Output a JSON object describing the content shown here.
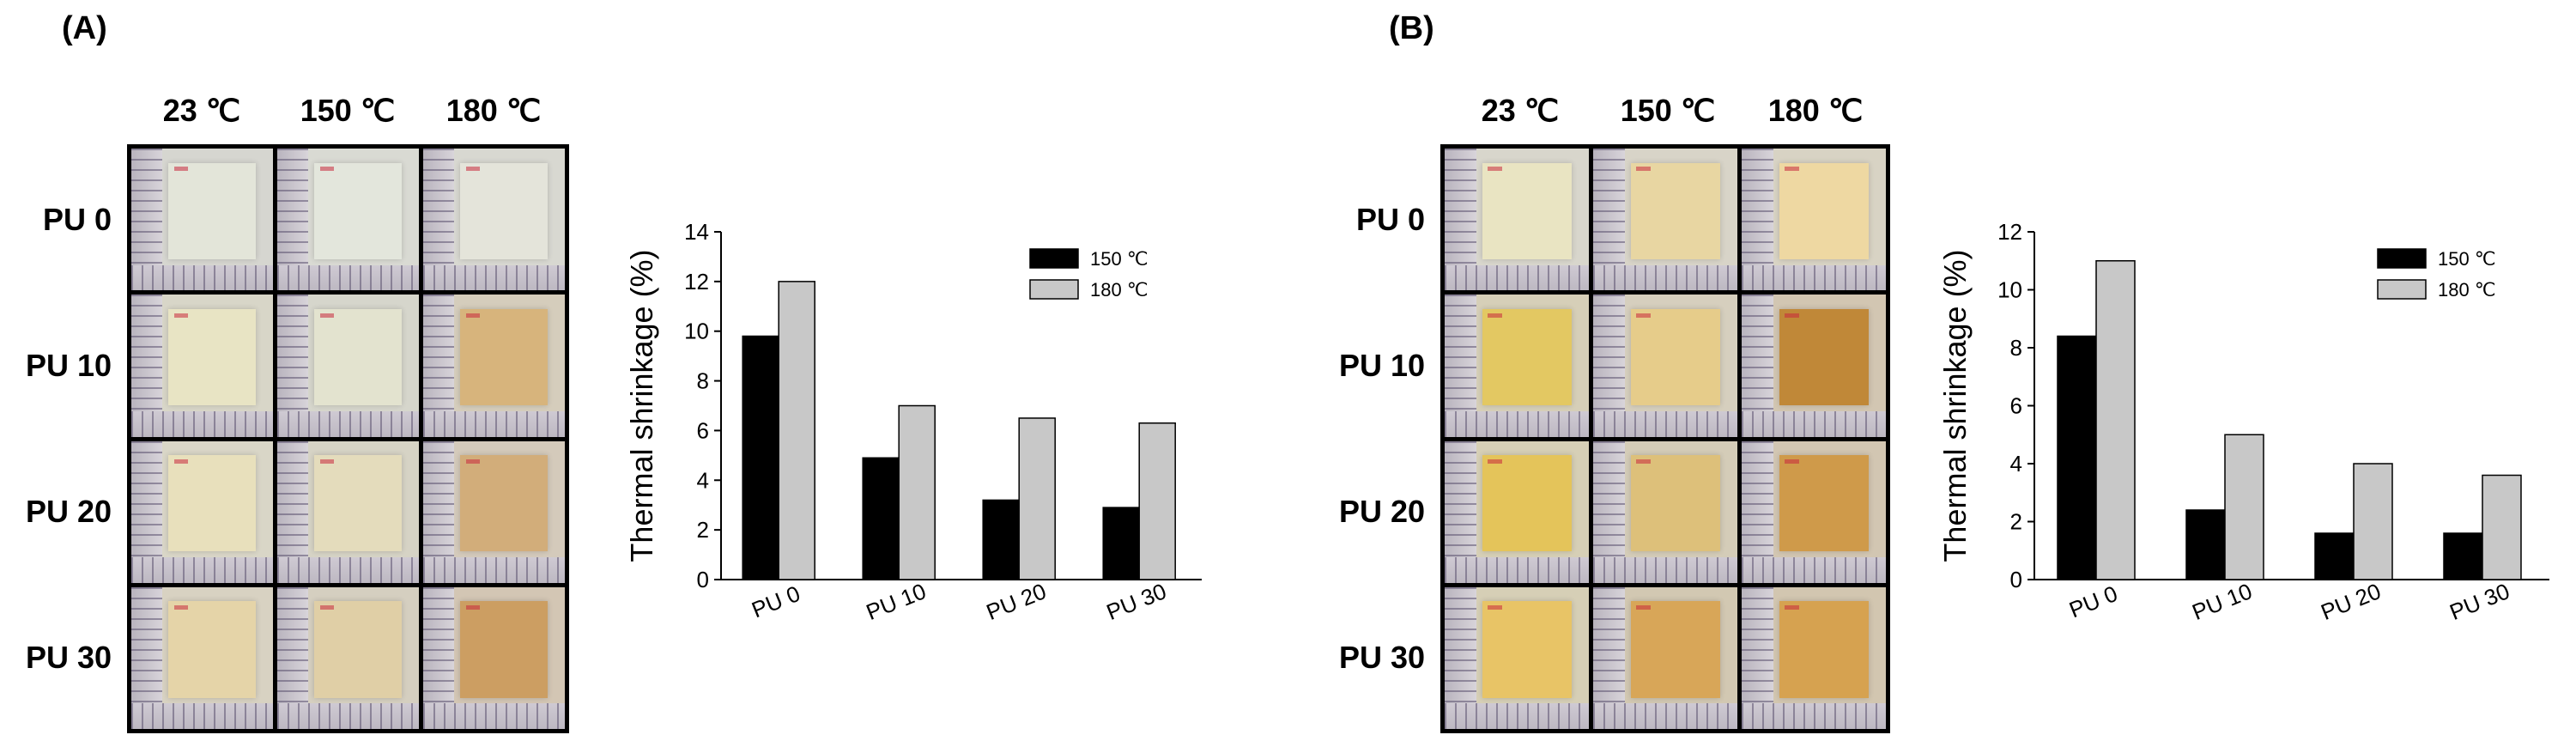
{
  "panels": [
    {
      "label": "(A)",
      "temps": [
        "23 ℃",
        "150 ℃",
        "180 ℃"
      ],
      "rows": [
        "PU 0",
        "PU 10",
        "PU 20",
        "PU 30"
      ],
      "film_colors": [
        [
          "#e3e5d9",
          "#e3e6dc",
          "#e4e4da"
        ],
        [
          "#e8e4c4",
          "#e3e3cf",
          "#d7b47c"
        ],
        [
          "#e8e0bc",
          "#e4dcbc",
          "#d2ad7a"
        ],
        [
          "#e5d4a8",
          "#e0cfa6",
          "#cc9e62"
        ]
      ],
      "bg_colors": [
        [
          "#d6d6d0",
          "#d9dad3",
          "#d8d8d1"
        ],
        [
          "#d8d6c8",
          "#d6d6cc",
          "#d5cdbc"
        ],
        [
          "#d9d6c7",
          "#d6d3c5",
          "#d4cabb"
        ],
        [
          "#d8d2c2",
          "#d5cfc0",
          "#d3c6b4"
        ]
      ]
    },
    {
      "label": "(B)",
      "temps": [
        "23 ℃",
        "150 ℃",
        "180 ℃"
      ],
      "rows": [
        "PU 0",
        "PU 10",
        "PU 20",
        "PU 30"
      ],
      "film_colors": [
        [
          "#e9e4c2",
          "#e8d6a2",
          "#eed8a2"
        ],
        [
          "#e3c862",
          "#e6cc8a",
          "#c08838"
        ],
        [
          "#e4c45a",
          "#ddc07a",
          "#cf9a4a"
        ],
        [
          "#e8c466",
          "#d8a658",
          "#d6a250"
        ]
      ],
      "bg_colors": [
        [
          "#d8d6cc",
          "#d8d4c8",
          "#d8d3c4"
        ],
        [
          "#d6cfb8",
          "#d6cfbe",
          "#d2c6b2"
        ],
        [
          "#d6cfb6",
          "#d4ccb8",
          "#d2c6b2"
        ],
        [
          "#d6cfb6",
          "#d2c8b2",
          "#d2c6b0"
        ]
      ]
    }
  ],
  "colors": {
    "series_150": "#000000",
    "series_180": "#c8c8c8"
  },
  "chart_data": [
    {
      "type": "bar",
      "categories": [
        "PU 0",
        "PU 10",
        "PU 20",
        "PU 30"
      ],
      "series": [
        {
          "name": "150 ℃",
          "values": [
            9.8,
            4.9,
            3.2,
            2.9
          ]
        },
        {
          "name": "180 ℃",
          "values": [
            12.0,
            7.0,
            6.5,
            6.3
          ]
        }
      ],
      "ylabel": "Thermal shrinkage (%)",
      "ylim": [
        0,
        14
      ],
      "yticks": [
        0,
        2,
        4,
        6,
        8,
        10,
        12,
        14
      ],
      "ytick_labels": [
        "0",
        "2",
        "4",
        "6",
        "8",
        "10",
        "12",
        "14"
      ],
      "legend_position": "top-right"
    },
    {
      "type": "bar",
      "categories": [
        "PU 0",
        "PU 10",
        "PU 20",
        "PU 30"
      ],
      "series": [
        {
          "name": "150 ℃",
          "values": [
            8.4,
            2.4,
            1.6,
            1.6
          ]
        },
        {
          "name": "180 ℃",
          "values": [
            11.0,
            5.0,
            4.0,
            3.6
          ]
        }
      ],
      "ylabel": "Thermal shrinkage (%)",
      "ylim": [
        0,
        12
      ],
      "yticks": [
        0,
        2,
        4,
        6,
        8,
        10,
        12
      ],
      "ytick_labels": [
        "0",
        "2",
        "4",
        "6",
        "8",
        "10",
        "12"
      ],
      "legend_position": "top-right"
    }
  ]
}
